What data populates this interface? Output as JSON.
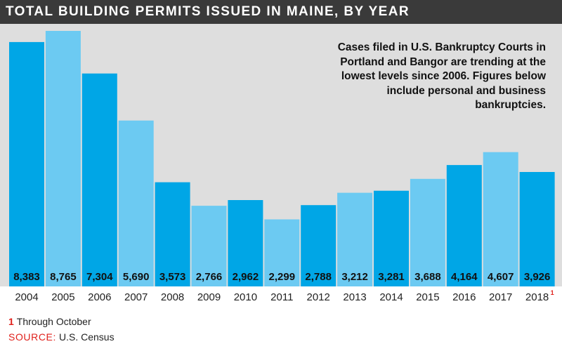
{
  "title": "TOTAL BUILDING PERMITS ISSUED IN MAINE, BY YEAR",
  "annotation": "Cases filed in U.S. Bankruptcy Courts in Portland and Bangor are trending at the lowest levels since 2006. Figures below include personal and business bankruptcies.",
  "footnote": {
    "marker": "1",
    "text": "Through October"
  },
  "source": {
    "label": "SOURCE:",
    "text": "U.S. Census"
  },
  "colors": {
    "dark_bar": "#00a6e6",
    "light_bar": "#6ccaf2",
    "plot_background": "#dedede",
    "title_background": "#3a3a3a",
    "footnote_marker": "#e0201b"
  },
  "chart_data": {
    "type": "bar",
    "categories": [
      "2004",
      "2005",
      "2006",
      "2007",
      "2008",
      "2009",
      "2010",
      "2011",
      "2012",
      "2013",
      "2014",
      "2015",
      "2016",
      "2017",
      "2018"
    ],
    "category_footnote_markers": [
      "",
      "",
      "",
      "",
      "",
      "",
      "",
      "",
      "",
      "",
      "",
      "",
      "",
      "",
      "1"
    ],
    "values": [
      8383,
      8765,
      7304,
      5690,
      3573,
      2766,
      2962,
      2299,
      2788,
      3212,
      3281,
      3688,
      4164,
      4607,
      3926
    ],
    "value_labels": [
      "8,383",
      "8,765",
      "7,304",
      "5,690",
      "3,573",
      "2,766",
      "2,962",
      "2,299",
      "2,788",
      "3,212",
      "3,281",
      "3,688",
      "4,164",
      "4,607",
      "3,926"
    ],
    "bar_shades": [
      "dark",
      "light",
      "dark",
      "light",
      "dark",
      "light",
      "dark",
      "light",
      "dark",
      "light",
      "dark",
      "light",
      "dark",
      "light",
      "dark"
    ],
    "ylim": [
      0,
      9000
    ],
    "grid": false,
    "legend": "none"
  }
}
